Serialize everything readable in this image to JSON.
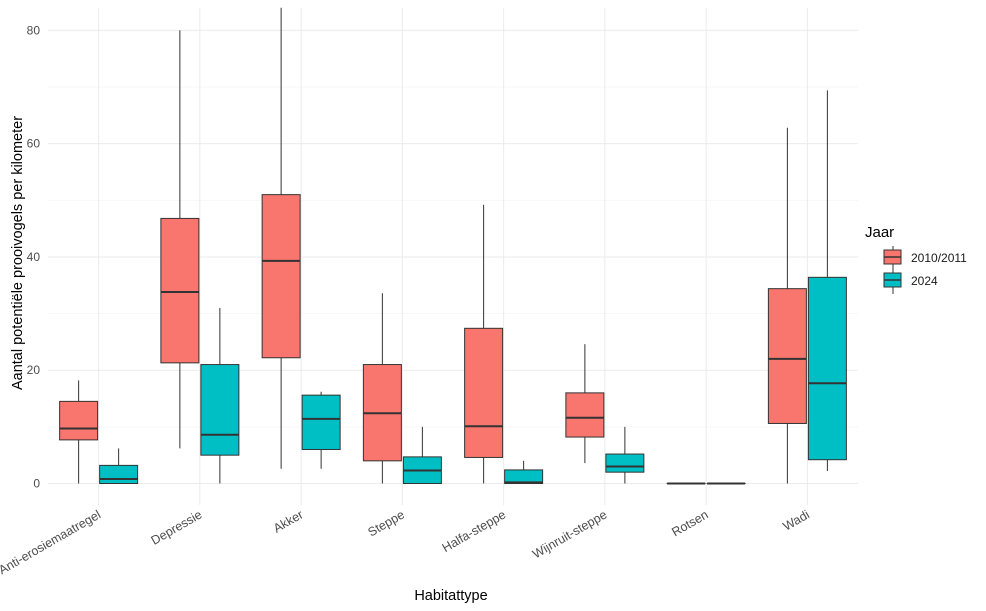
{
  "chart_data": {
    "type": "boxplot",
    "title": "",
    "xlabel": "Habitattype",
    "ylabel": "Aantal potentiële prooivogels per kilometer",
    "ylim": [
      -4,
      84
    ],
    "yticks": [
      0,
      20,
      40,
      60,
      80
    ],
    "categories": [
      "Anti-erosiemaatregel",
      "Depressie",
      "Akker",
      "Steppe",
      "Halfa-steppe",
      "Wijnruit-steppe",
      "Rotsen",
      "Wadi"
    ],
    "legend": {
      "title": "Jaar",
      "position": "right"
    },
    "series": [
      {
        "name": "2010/2011",
        "color": "#F8766D",
        "boxes": [
          {
            "min": 0,
            "q1": 7.7,
            "median": 9.7,
            "q3": 14.5,
            "max": 18.2
          },
          {
            "min": 6.2,
            "q1": 21.3,
            "median": 33.8,
            "q3": 46.8,
            "max": 80.0
          },
          {
            "min": 2.6,
            "q1": 22.2,
            "median": 39.3,
            "q3": 51.0,
            "max": 84.0
          },
          {
            "min": 0,
            "q1": 4.0,
            "median": 12.4,
            "q3": 21.0,
            "max": 33.6
          },
          {
            "min": 0,
            "q1": 4.6,
            "median": 10.1,
            "q3": 27.4,
            "max": 49.2
          },
          {
            "min": 3.6,
            "q1": 8.2,
            "median": 11.6,
            "q3": 16.0,
            "max": 24.6
          },
          {
            "min": 0,
            "q1": 0,
            "median": 0,
            "q3": 0,
            "max": 0
          },
          {
            "min": 0,
            "q1": 10.6,
            "median": 22.0,
            "q3": 34.4,
            "max": 62.8
          }
        ]
      },
      {
        "name": "2024",
        "color": "#00BFC4",
        "boxes": [
          {
            "min": 0,
            "q1": 0,
            "median": 0.8,
            "q3": 3.2,
            "max": 6.2
          },
          {
            "min": 0,
            "q1": 5.0,
            "median": 8.6,
            "q3": 21.0,
            "max": 31.0
          },
          {
            "min": 2.6,
            "q1": 6.0,
            "median": 11.4,
            "q3": 15.6,
            "max": 16.2
          },
          {
            "min": 0,
            "q1": 0,
            "median": 2.3,
            "q3": 4.7,
            "max": 10.0
          },
          {
            "min": 0,
            "q1": 0,
            "median": 0.2,
            "q3": 2.4,
            "max": 4.0
          },
          {
            "min": 0,
            "q1": 2.0,
            "median": 3.0,
            "q3": 5.2,
            "max": 10.0
          },
          {
            "min": 0,
            "q1": 0,
            "median": 0,
            "q3": 0,
            "max": 0
          },
          {
            "min": 2.2,
            "q1": 4.2,
            "median": 17.7,
            "q3": 36.4,
            "max": 69.4
          }
        ]
      }
    ]
  }
}
